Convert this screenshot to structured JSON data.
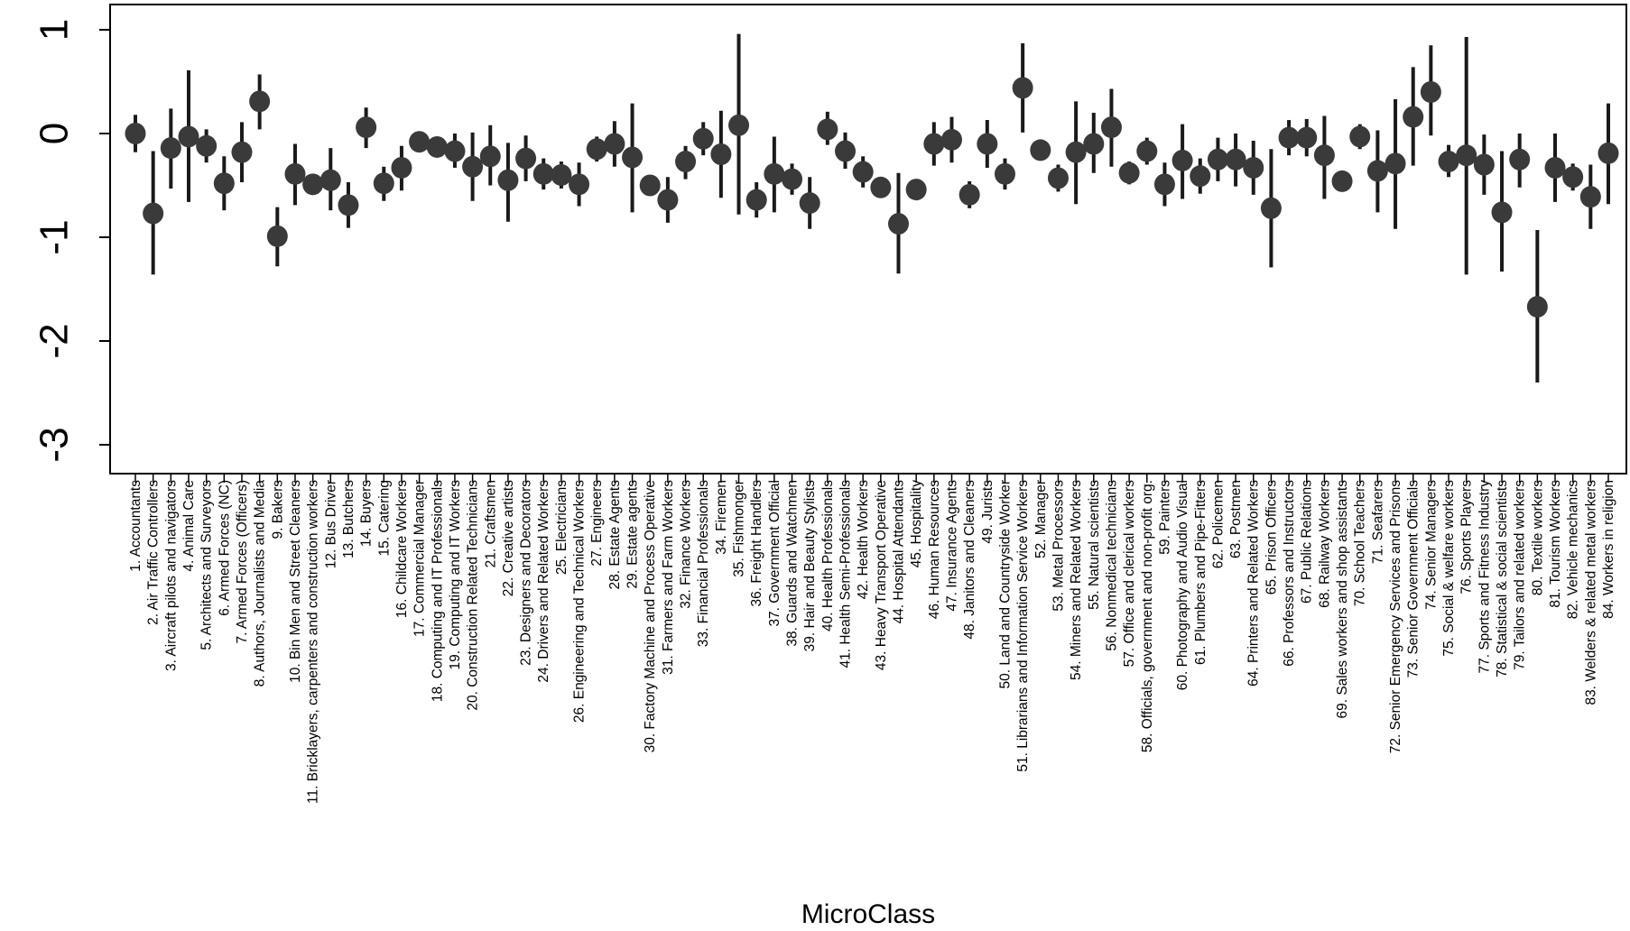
{
  "chart_data": {
    "type": "scatter",
    "style": "point-range",
    "xlabel": "MicroClass",
    "ylabel": "",
    "ylim": [
      -3.25,
      1.25
    ],
    "yticks": [
      1,
      0,
      -1,
      -2,
      -3
    ],
    "yticklabels": [
      "1",
      "0",
      "-1",
      "-2",
      "-3"
    ],
    "grid": false,
    "legend": "none",
    "point_color": "#3a3a3a",
    "line_color": "#1a1a1a",
    "categories": [
      "1. Accountants",
      "2. Air Traffic Controllers",
      "3. Aircraft pilots and navigators",
      "4. Animal Care",
      "5. Architects and Surveyors",
      "6. Armed Forces (NC)",
      "7. Armed Forces (Officers)",
      "8. Authors, Journalists and Media",
      "9. Bakers",
      "10. Bin Men and Street Cleaners",
      "11. Bricklayers, carpenters and construction workers",
      "12. Bus Driver",
      "13. Butchers",
      "14. Buyers",
      "15. Catering",
      "16. Childcare Workers",
      "17. Commercial Manager",
      "18. Computing and IT Professionals",
      "19. Computing and IT Workers",
      "20. Construction Related Technicians",
      "21. Craftsmen",
      "22. Creative artists",
      "23. Designers and Decorators",
      "24. Drivers and Related Workers",
      "25. Electricians",
      "26. Engineering and Technical Workers",
      "27. Engineers",
      "28. Estate Agents",
      "29. Estate agents",
      "30. Factory Machine and Process Operative",
      "31. Farmers and Farm Workers",
      "32. Finance Workers",
      "33. Financial Professionals",
      "34. Firemen",
      "35. Fishmonger",
      "36. Freight Handlers",
      "37. Government Official",
      "38. Guards and Watchmen",
      "39. Hair and Beauty Stylists",
      "40. Health Professionals",
      "41. Health Semi-Professionals",
      "42. Health Workers",
      "43. Heavy Transport Operative",
      "44. Hospital Attendants",
      "45. Hospitality",
      "46. Human Resources",
      "47. Insurance Agents",
      "48. Janitors and Cleaners",
      "49. Jurists",
      "50. Land and Countryside Worker",
      "51. Librarians and Information Service Workers",
      "52. Manager",
      "53. Metal Processors",
      "54. Miners and Related Workers",
      "55. Natural scientists",
      "56. Nonmedical technicians",
      "57. Office and clerical workers",
      "58. Officials, government and non-profit org.",
      "59. Painters",
      "60. Photography and Audio Visual",
      "61. Plumbers and Pipe-Fitters",
      "62. Policemen",
      "63. Postmen",
      "64. Printers and Related Workers",
      "65. Prison Officers",
      "66. Professors and Instructors",
      "67. Public Relations",
      "68. Railway Workers",
      "69. Sales workers and shop assistants",
      "70. School Teachers",
      "71. Seafarers",
      "72. Senior Emergency Services and Prisons",
      "73. Senior Government Officials",
      "74. Senior Managers",
      "75. Social & welfare workers",
      "76. Sports Players",
      "77. Sports and Fitness Industry",
      "78. Statistical & social scientists",
      "79. Tailors and related workers",
      "80. Textile workers",
      "81. Tourism Workers",
      "82. Vehicle mechanics",
      "83. Welders & related metal workers",
      "84. Workers in religion"
    ],
    "estimate": [
      0,
      -0.77,
      -0.14,
      -0.03,
      -0.12,
      -0.48,
      -0.18,
      0.31,
      -0.99,
      -0.39,
      -0.49,
      -0.45,
      -0.69,
      0.06,
      -0.48,
      -0.33,
      -0.08,
      -0.13,
      -0.17,
      -0.32,
      -0.22,
      -0.45,
      -0.24,
      -0.39,
      -0.4,
      -0.49,
      -0.15,
      -0.1,
      -0.23,
      -0.5,
      -0.64,
      -0.27,
      -0.05,
      -0.2,
      0.08,
      -0.64,
      -0.39,
      -0.44,
      -0.67,
      0.04,
      -0.17,
      -0.37,
      -0.52,
      -0.87,
      -0.54,
      -0.1,
      -0.06,
      -0.59,
      -0.1,
      -0.39,
      0.44,
      -0.16,
      -0.43,
      -0.18,
      -0.1,
      0.06,
      -0.38,
      -0.17,
      -0.49,
      -0.26,
      -0.41,
      -0.25,
      -0.25,
      -0.33,
      -0.72,
      -0.04,
      -0.04,
      -0.21,
      -0.46,
      -0.03,
      -0.36,
      -0.29,
      0.16,
      0.4,
      -0.27,
      -0.21,
      -0.3,
      -0.76,
      -0.25,
      -1.67,
      -0.33,
      -0.42,
      -0.61,
      -0.19
    ],
    "lower": [
      -0.18,
      -1.36,
      -0.53,
      -0.66,
      -0.28,
      -0.74,
      -0.47,
      0.04,
      -1.28,
      -0.69,
      -0.57,
      -0.74,
      -0.91,
      -0.14,
      -0.65,
      -0.55,
      -0.17,
      -0.22,
      -0.33,
      -0.65,
      -0.5,
      -0.85,
      -0.46,
      -0.54,
      -0.53,
      -0.7,
      -0.27,
      -0.32,
      -0.76,
      -0.6,
      -0.86,
      -0.44,
      -0.21,
      -0.62,
      -0.78,
      -0.81,
      -0.76,
      -0.59,
      -0.92,
      -0.11,
      -0.34,
      -0.52,
      -0.59,
      -1.35,
      -0.61,
      -0.31,
      -0.28,
      -0.72,
      -0.33,
      -0.54,
      0.01,
      -0.24,
      -0.56,
      -0.68,
      -0.38,
      -0.32,
      -0.49,
      -0.3,
      -0.7,
      -0.63,
      -0.58,
      -0.46,
      -0.51,
      -0.59,
      -1.29,
      -0.21,
      -0.22,
      -0.63,
      -0.53,
      -0.15,
      -0.76,
      -0.92,
      -0.31,
      -0.02,
      -0.42,
      -1.36,
      -0.59,
      -1.33,
      -0.52,
      -2.4,
      -0.66,
      -0.55,
      -0.92,
      -0.68
    ],
    "upper": [
      0.18,
      -0.17,
      0.24,
      0.61,
      0.04,
      -0.22,
      0.11,
      0.57,
      -0.71,
      -0.1,
      -0.41,
      -0.14,
      -0.47,
      0.25,
      -0.32,
      -0.12,
      0.0,
      -0.04,
      0.0,
      0.01,
      0.08,
      -0.09,
      -0.02,
      -0.24,
      -0.27,
      -0.28,
      -0.03,
      0.12,
      0.29,
      -0.4,
      -0.42,
      -0.12,
      0.11,
      0.22,
      0.96,
      -0.47,
      -0.03,
      -0.29,
      -0.42,
      0.21,
      0.01,
      -0.22,
      -0.45,
      -0.38,
      -0.47,
      0.11,
      0.16,
      -0.46,
      0.13,
      -0.24,
      0.87,
      -0.08,
      -0.3,
      0.31,
      0.2,
      0.43,
      -0.27,
      -0.04,
      -0.28,
      0.09,
      -0.24,
      -0.04,
      0.0,
      -0.07,
      -0.15,
      0.13,
      0.14,
      0.17,
      -0.39,
      0.09,
      0.03,
      0.33,
      0.64,
      0.85,
      -0.11,
      0.93,
      -0.01,
      -0.17,
      0.0,
      -0.93,
      0.0,
      -0.29,
      -0.3,
      0.29
    ]
  }
}
